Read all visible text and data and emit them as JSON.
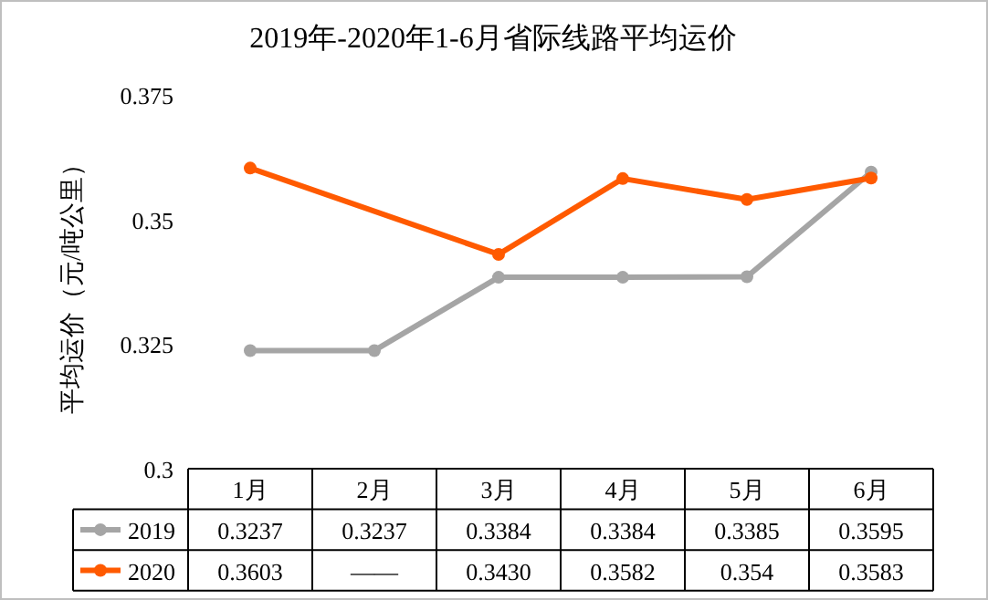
{
  "chart_data": {
    "type": "line",
    "title": "2019年-2020年1-6月省际线路平均运价",
    "ylabel": "平均运价（元/吨公里）",
    "categories": [
      "1月",
      "2月",
      "3月",
      "4月",
      "5月",
      "6月"
    ],
    "series": [
      {
        "name": "2019",
        "color": "#a5a5a5",
        "values": [
          0.3237,
          0.3237,
          0.3384,
          0.3384,
          0.3385,
          0.3595
        ],
        "value_labels": [
          "0.3237",
          "0.3237",
          "0.3384",
          "0.3384",
          "0.3385",
          "0.3595"
        ]
      },
      {
        "name": "2020",
        "color": "#ff5a00",
        "values": [
          0.3603,
          null,
          0.343,
          0.3582,
          0.354,
          0.3583
        ],
        "value_labels": [
          "0.3603",
          "——",
          "0.3430",
          "0.3582",
          "0.354",
          "0.3583"
        ]
      }
    ],
    "ylim": [
      0.3,
      0.375
    ],
    "yticks": [
      0.3,
      0.325,
      0.35,
      0.375
    ],
    "marker": "circle",
    "legend": "bottom",
    "grid": false
  }
}
